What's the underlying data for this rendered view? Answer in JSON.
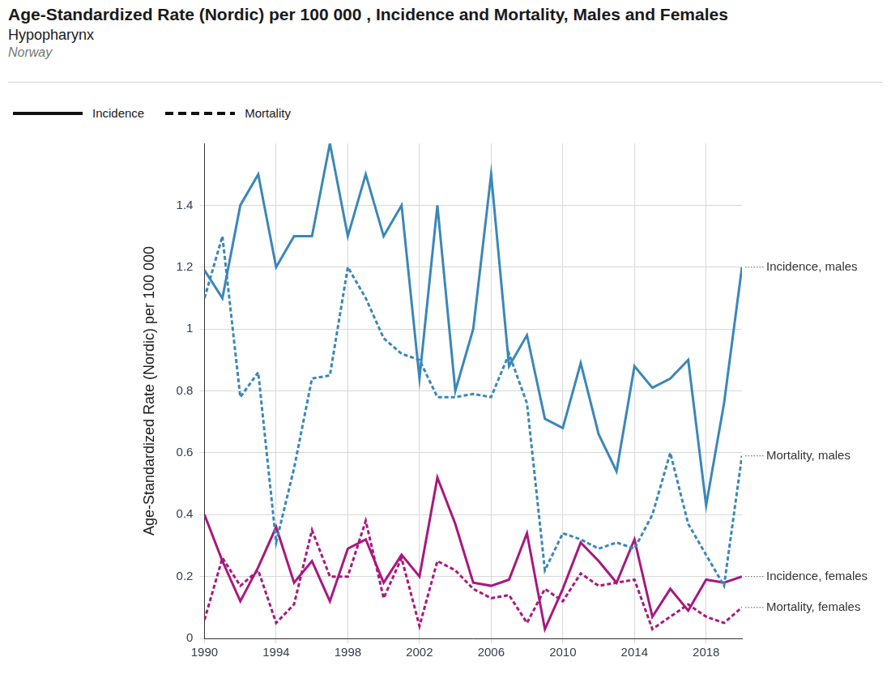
{
  "chart_data": {
    "type": "line",
    "title": "Age-Standardized Rate (Nordic) per 100 000 , Incidence and Mortality, Males and Females",
    "subtitles": [
      "Hypopharynx",
      "Norway"
    ],
    "y_label": "Age-Standardized Rate (Nordic) per 100 000",
    "line_style_legend": [
      {
        "label": "Incidence",
        "line_style": "solid"
      },
      {
        "label": "Mortality",
        "line_style": "dashed"
      }
    ],
    "x": [
      1990,
      1991,
      1992,
      1993,
      1994,
      1995,
      1996,
      1997,
      1998,
      1999,
      2000,
      2001,
      2002,
      2003,
      2004,
      2005,
      2006,
      2007,
      2008,
      2009,
      2010,
      2011,
      2012,
      2013,
      2014,
      2015,
      2016,
      2017,
      2018,
      2019,
      2020
    ],
    "xlim": [
      1990,
      2020
    ],
    "xticks": [
      1990,
      1994,
      1998,
      2002,
      2006,
      2010,
      2014,
      2018
    ],
    "ylim": [
      0,
      1.6
    ],
    "yticks": [
      0,
      0.2,
      0.4,
      0.6,
      0.8,
      1,
      1.2,
      1.4
    ],
    "grid": true,
    "legend": "top-left",
    "series": [
      {
        "name": "Incidence, males",
        "color": "#3a87b8",
        "line_style": "solid",
        "marker": "none",
        "values": [
          1.19,
          1.1,
          1.4,
          1.5,
          1.2,
          1.3,
          1.3,
          1.6,
          1.3,
          1.5,
          1.3,
          1.4,
          0.84,
          1.4,
          0.8,
          1.0,
          1.5,
          0.88,
          0.98,
          0.71,
          0.68,
          0.89,
          0.66,
          0.54,
          0.88,
          0.81,
          0.84,
          0.9,
          0.43,
          0.76,
          1.2
        ]
      },
      {
        "name": "Mortality, males",
        "color": "#3a87b8",
        "line_style": "dashed",
        "marker": "none",
        "values": [
          1.1,
          1.3,
          0.78,
          0.86,
          0.31,
          0.55,
          0.84,
          0.85,
          1.2,
          1.1,
          0.97,
          0.92,
          0.9,
          0.78,
          0.78,
          0.79,
          0.78,
          0.92,
          0.76,
          0.22,
          0.34,
          0.32,
          0.29,
          0.31,
          0.29,
          0.4,
          0.6,
          0.37,
          0.27,
          0.17,
          0.59
        ]
      },
      {
        "name": "Incidence, females",
        "color": "#a8187f",
        "line_style": "solid",
        "marker": "none",
        "values": [
          0.4,
          0.25,
          0.12,
          0.23,
          0.36,
          0.18,
          0.25,
          0.12,
          0.29,
          0.32,
          0.18,
          0.27,
          0.2,
          0.52,
          0.37,
          0.18,
          0.17,
          0.19,
          0.34,
          0.03,
          0.16,
          0.31,
          0.25,
          0.18,
          0.32,
          0.07,
          0.16,
          0.09,
          0.19,
          0.18,
          0.2
        ]
      },
      {
        "name": "Mortality, females",
        "color": "#a8187f",
        "line_style": "dashed",
        "marker": "none",
        "values": [
          0.06,
          0.26,
          0.17,
          0.22,
          0.05,
          0.11,
          0.35,
          0.2,
          0.2,
          0.38,
          0.13,
          0.26,
          0.04,
          0.25,
          0.22,
          0.16,
          0.13,
          0.14,
          0.05,
          0.16,
          0.12,
          0.21,
          0.17,
          0.18,
          0.19,
          0.03,
          0.07,
          0.11,
          0.07,
          0.05,
          0.1
        ]
      }
    ]
  }
}
